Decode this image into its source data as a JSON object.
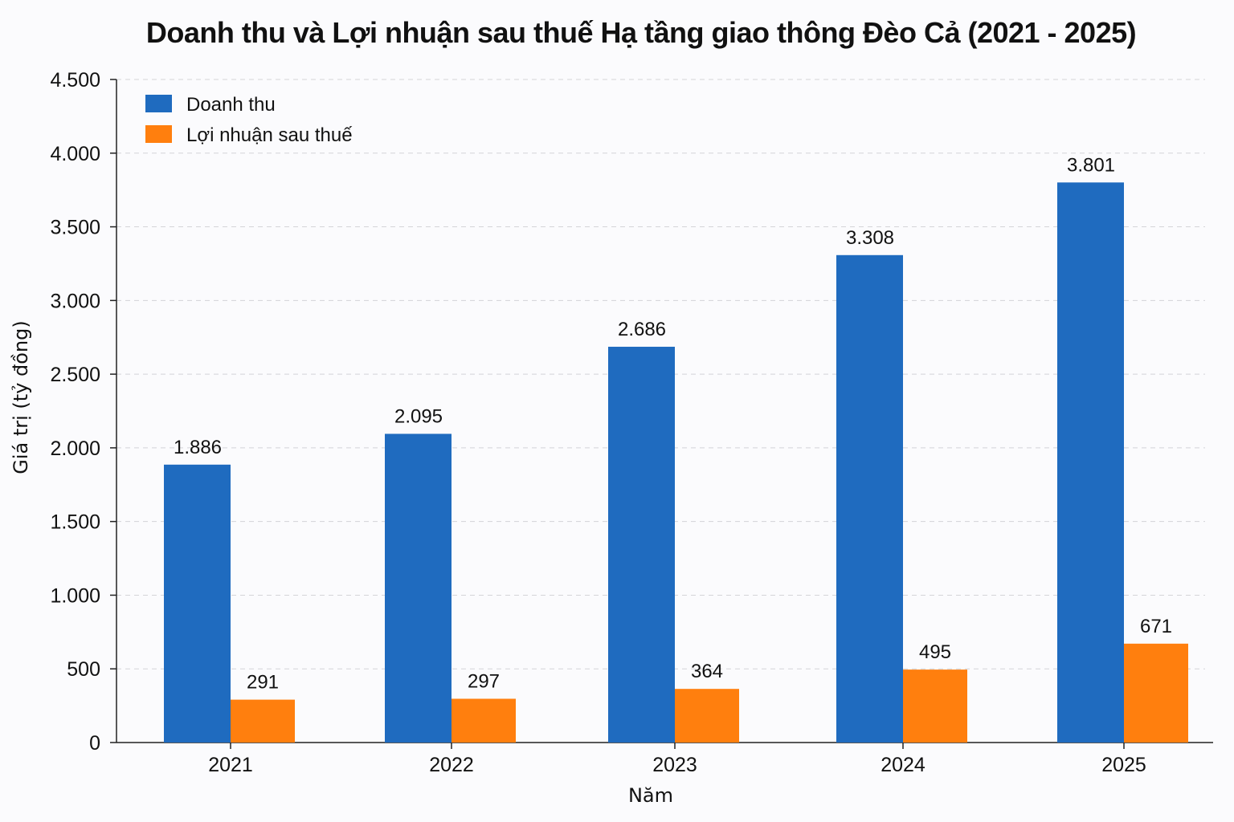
{
  "chart_data": {
    "type": "bar",
    "title": "Doanh thu và Lợi nhuận sau thuế Hạ tầng giao thông Đèo Cả (2021 - 2025)",
    "xlabel": "Năm",
    "ylabel": "Giá trị (tỷ đồng)",
    "categories": [
      "2021",
      "2022",
      "2023",
      "2024",
      "2025"
    ],
    "ylim": [
      0,
      4500
    ],
    "yticks": [
      0,
      500,
      1000,
      1500,
      2000,
      2500,
      3000,
      3500,
      4000,
      4500
    ],
    "ytick_labels": [
      "0",
      "500",
      "1.000",
      "1.500",
      "2.000",
      "2.500",
      "3.000",
      "3.500",
      "4.000",
      "4.500"
    ],
    "series": [
      {
        "name": "Doanh thu",
        "color": "#1f6bbf",
        "values": [
          1886,
          2095,
          2686,
          3308,
          3801
        ],
        "labels": [
          "1.886",
          "2.095",
          "2.686",
          "3.308",
          "3.801"
        ]
      },
      {
        "name": "Lợi nhuận sau thuế",
        "color": "#ff7f0e",
        "values": [
          291,
          297,
          364,
          495,
          671
        ],
        "labels": [
          "291",
          "297",
          "364",
          "495",
          "671"
        ]
      }
    ],
    "grid": true,
    "grid_style": "dashed",
    "legend_position": "top-left"
  }
}
